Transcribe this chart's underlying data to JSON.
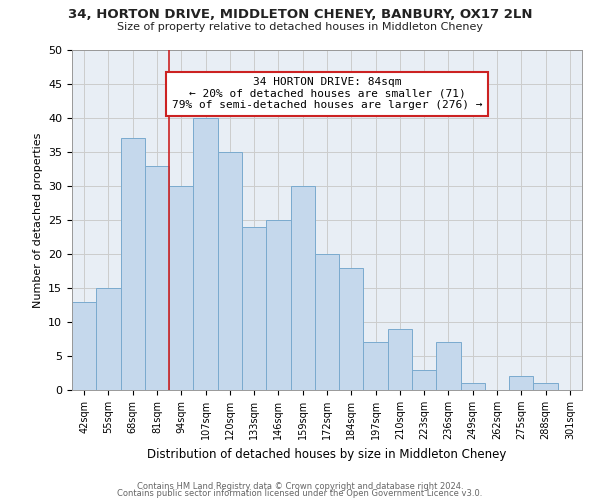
{
  "title": "34, HORTON DRIVE, MIDDLETON CHENEY, BANBURY, OX17 2LN",
  "subtitle": "Size of property relative to detached houses in Middleton Cheney",
  "xlabel": "Distribution of detached houses by size in Middleton Cheney",
  "ylabel": "Number of detached properties",
  "bar_labels": [
    "42sqm",
    "55sqm",
    "68sqm",
    "81sqm",
    "94sqm",
    "107sqm",
    "120sqm",
    "133sqm",
    "146sqm",
    "159sqm",
    "172sqm",
    "184sqm",
    "197sqm",
    "210sqm",
    "223sqm",
    "236sqm",
    "249sqm",
    "262sqm",
    "275sqm",
    "288sqm",
    "301sqm"
  ],
  "bar_values": [
    13,
    15,
    37,
    33,
    30,
    40,
    35,
    24,
    25,
    30,
    20,
    18,
    7,
    9,
    3,
    7,
    1,
    0,
    2,
    1,
    0
  ],
  "bar_color": "#c5d8ec",
  "bar_edge_color": "#7aaace",
  "vline_x_idx": 3,
  "vline_color": "#cc2222",
  "annotation_line1": "34 HORTON DRIVE: 84sqm",
  "annotation_line2": "← 20% of detached houses are smaller (71)",
  "annotation_line3": "79% of semi-detached houses are larger (276) →",
  "annotation_box_color": "#ffffff",
  "annotation_box_edge": "#cc2222",
  "ylim": [
    0,
    50
  ],
  "yticks": [
    0,
    5,
    10,
    15,
    20,
    25,
    30,
    35,
    40,
    45,
    50
  ],
  "grid_color": "#cccccc",
  "bg_color": "#ffffff",
  "plot_bg_color": "#e8eef5",
  "footer1": "Contains HM Land Registry data © Crown copyright and database right 2024.",
  "footer2": "Contains public sector information licensed under the Open Government Licence v3.0."
}
